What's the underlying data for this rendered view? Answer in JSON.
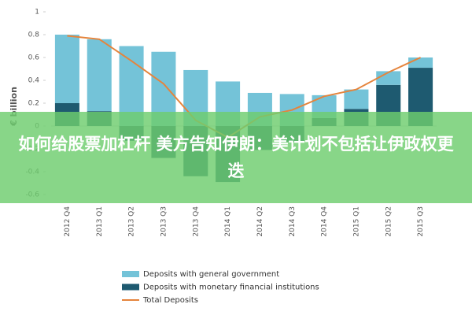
{
  "chart_data": {
    "type": "bar",
    "y_axis_label": "€ billion",
    "categories": [
      "2012 Q4",
      "2013 Q1",
      "2013 Q2",
      "2013 Q3",
      "2013 Q4",
      "2014 Q1",
      "2014 Q2",
      "2014 Q3",
      "2014 Q4",
      "2015 Q1",
      "2015 Q2",
      "2015 Q3"
    ],
    "series": [
      {
        "name": "Deposits with general government",
        "color": "#74c3d8",
        "values": [
          0.6,
          0.63,
          0.7,
          0.65,
          0.49,
          0.39,
          0.29,
          0.28,
          0.2,
          0.17,
          0.12,
          0.09
        ]
      },
      {
        "name": "Deposits with monetary financial institutions",
        "color": "#1e5a70",
        "values": [
          0.2,
          0.13,
          -0.13,
          -0.28,
          -0.44,
          -0.49,
          -0.21,
          -0.14,
          0.07,
          0.15,
          0.36,
          0.51
        ]
      },
      {
        "name": "Total Deposits",
        "type": "line",
        "color": "#e5843c",
        "values": [
          0.79,
          0.76,
          0.57,
          0.37,
          0.05,
          -0.1,
          0.08,
          0.14,
          0.26,
          0.32,
          0.47,
          0.6
        ]
      }
    ],
    "ylim": [
      -0.6,
      1
    ],
    "yticks": [
      1,
      0.8,
      0.6,
      0.4,
      0.2,
      0,
      -0.2,
      -0.4,
      -0.6
    ]
  },
  "banner": {
    "text": "如何给股票加杠杆 美方告知伊朗：美计划不包括让伊政权更迭"
  }
}
